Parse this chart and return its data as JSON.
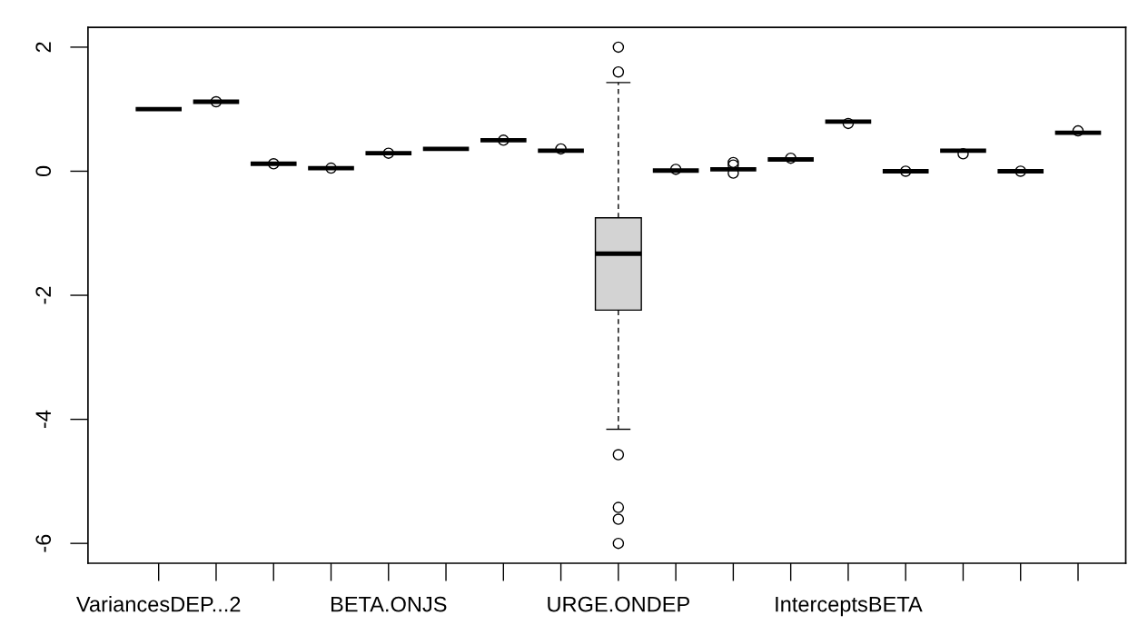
{
  "chart_data": {
    "type": "box",
    "categories": [
      "VariancesDEP...2",
      null,
      null,
      null,
      "BETA.ONJS",
      null,
      null,
      null,
      "URGE.ONDEP",
      null,
      null,
      null,
      "InterceptsBETA",
      null,
      null,
      null,
      null
    ],
    "ylim": [
      -6.32,
      2.32
    ],
    "yticks": [
      -6,
      -4,
      -2,
      0,
      2
    ],
    "grid": false,
    "legend": false,
    "series": [
      {
        "color": "#d3d3d3",
        "boxes": [
          {
            "low": 1.0,
            "q1": 1.0,
            "median": 1.0,
            "q3": 1.0,
            "high": 1.0
          },
          {
            "low": 1.12,
            "q1": 1.12,
            "median": 1.12,
            "q3": 1.12,
            "high": 1.12,
            "outliers": [
              1.12
            ]
          },
          {
            "low": 0.12,
            "q1": 0.12,
            "median": 0.12,
            "q3": 0.12,
            "high": 0.12,
            "outliers": [
              0.12
            ]
          },
          {
            "low": 0.05,
            "q1": 0.05,
            "median": 0.05,
            "q3": 0.05,
            "high": 0.05,
            "outliers": [
              0.05
            ]
          },
          {
            "low": 0.29,
            "q1": 0.29,
            "median": 0.29,
            "q3": 0.29,
            "high": 0.29,
            "outliers": [
              0.29
            ]
          },
          {
            "low": 0.36,
            "q1": 0.36,
            "median": 0.36,
            "q3": 0.36,
            "high": 0.36
          },
          {
            "low": 0.5,
            "q1": 0.5,
            "median": 0.5,
            "q3": 0.5,
            "high": 0.5,
            "outliers": [
              0.5
            ]
          },
          {
            "low": 0.33,
            "q1": 0.33,
            "median": 0.33,
            "q3": 0.33,
            "high": 0.33,
            "outliers": [
              0.36
            ]
          },
          {
            "low": -4.16,
            "q1": -2.24,
            "median": -1.33,
            "q3": -0.75,
            "high": 1.43,
            "outliers": [
              2.0,
              1.6,
              -4.57,
              -5.42,
              -5.61,
              -6.0
            ]
          },
          {
            "low": 0.01,
            "q1": 0.01,
            "median": 0.01,
            "q3": 0.01,
            "high": 0.01,
            "outliers": [
              0.03
            ]
          },
          {
            "low": 0.03,
            "q1": 0.03,
            "median": 0.03,
            "q3": 0.03,
            "high": 0.03,
            "outliers": [
              0.14,
              0.1,
              -0.03
            ]
          },
          {
            "low": 0.19,
            "q1": 0.19,
            "median": 0.19,
            "q3": 0.19,
            "high": 0.19,
            "outliers": [
              0.21
            ]
          },
          {
            "low": 0.8,
            "q1": 0.8,
            "median": 0.8,
            "q3": 0.8,
            "high": 0.8,
            "outliers": [
              0.77
            ]
          },
          {
            "low": 0.0,
            "q1": 0.0,
            "median": 0.0,
            "q3": 0.0,
            "high": 0.0,
            "outliers": [
              0.0
            ]
          },
          {
            "low": 0.33,
            "q1": 0.33,
            "median": 0.33,
            "q3": 0.33,
            "high": 0.33,
            "outliers": [
              0.28
            ]
          },
          {
            "low": 0.0,
            "q1": 0.0,
            "median": 0.0,
            "q3": 0.0,
            "high": 0.0,
            "outliers": [
              0.0
            ]
          },
          {
            "low": 0.62,
            "q1": 0.62,
            "median": 0.62,
            "q3": 0.62,
            "high": 0.62,
            "outliers": [
              0.65
            ]
          }
        ]
      }
    ]
  }
}
